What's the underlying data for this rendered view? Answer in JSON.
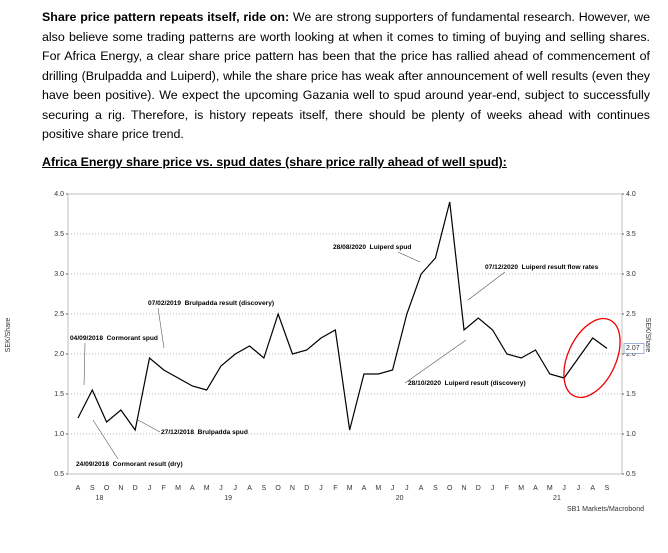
{
  "paragraph": {
    "lead": "Share price pattern repeats itself, ride on:",
    "text": "We are strong supporters of fundamental research. However, we also believe some trading patterns are worth looking at when it comes to timing of buying and selling shares. For Africa Energy, a clear share price pattern has been that the price has rallied ahead of commencement of drilling (Brulpadda and Luiperd), while the share price has weak after announcement of well results (even they have been positive). We expect the upcoming Gazania well to spud around year-end, subject to successfully securing a rig. Therefore, is history repeats itself, there should be plenty of weeks ahead with continues positive share price trend."
  },
  "chart_heading": "Africa Energy share price vs. spud dates (share price rally ahead of well spud):",
  "chart_data": {
    "type": "line",
    "categories": [
      "A",
      "S",
      "O",
      "N",
      "D",
      "J",
      "F",
      "M",
      "A",
      "M",
      "J",
      "J",
      "A",
      "S",
      "O",
      "N",
      "D",
      "J",
      "F",
      "M",
      "A",
      "M",
      "J",
      "J",
      "A",
      "S",
      "O",
      "N",
      "D",
      "J",
      "F",
      "M",
      "A",
      "M",
      "J",
      "J",
      "A",
      "S"
    ],
    "year_labels": [
      "18",
      "19",
      "20",
      "21"
    ],
    "series": [
      {
        "name": "Africa Energy",
        "color": "#000000",
        "values": [
          1.2,
          1.55,
          1.15,
          1.3,
          1.05,
          1.95,
          1.8,
          1.7,
          1.6,
          1.55,
          1.85,
          2.0,
          2.1,
          1.95,
          2.5,
          2.0,
          2.05,
          2.2,
          2.3,
          1.05,
          1.75,
          1.75,
          1.8,
          2.5,
          3.0,
          3.2,
          3.9,
          2.3,
          2.45,
          2.3,
          2.0,
          1.95,
          2.05,
          1.75,
          1.7,
          1.95,
          2.2,
          2.07
        ]
      }
    ],
    "ylim": [
      0.5,
      4.0
    ],
    "yticks": [
      {
        "value": 0.5,
        "label": "0.5"
      },
      {
        "value": 1,
        "label": "1.0"
      },
      {
        "value": 1.5,
        "label": "1.5"
      },
      {
        "value": 2,
        "label": "2.0"
      },
      {
        "value": 2.5,
        "label": "2.5"
      },
      {
        "value": 3,
        "label": "3.0"
      },
      {
        "value": 3.5,
        "label": "3.5"
      },
      {
        "value": 4,
        "label": "4.0"
      }
    ],
    "y2lim": [
      0.5,
      4.0
    ],
    "y2ticks": [
      {
        "value": 0.5,
        "label": "0.5"
      },
      {
        "value": 1,
        "label": "1.0"
      },
      {
        "value": 1.5,
        "label": "1.5"
      },
      {
        "value": 2,
        "label": "2.0"
      },
      {
        "value": 2.5,
        "label": "2.5"
      },
      {
        "value": 3,
        "label": "3.0"
      },
      {
        "value": 3.5,
        "label": "3.5"
      },
      {
        "value": 4,
        "label": "4.0"
      }
    ],
    "y_label": "SEK/Share",
    "y2_label": "SEK/Share",
    "grid": true,
    "annotations": [
      "07/02/2019  Brulpadda result (discovery)",
      "04/09/2018  Cormorant spud",
      "24/09/2018  Cormorant result (dry)",
      "27/12/2018  Brulpadda spud",
      "28/08/2020  Luiperd spud",
      "07/12/2020  Luiperd result flow rates",
      "28/10/2020  Luiperd result (discovery)"
    ],
    "source": "SB1 Markets/Macrobond"
  }
}
